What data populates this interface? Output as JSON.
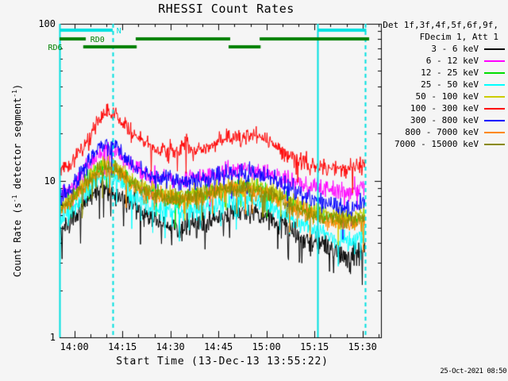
{
  "page": {
    "background": "#f5f5f5",
    "timestamp": "25-Oct-2021 08:50"
  },
  "chart_data": {
    "type": "line",
    "title": "RHESSI Count Rates",
    "xlabel": "Start Time (13-Dec-13 13:55:22)",
    "ylabel_parts": [
      {
        "t": "Count Rate (s"
      },
      {
        "t": "-1",
        "sup": true
      },
      {
        "t": " detector segment"
      },
      {
        "t": "-1",
        "sup": true
      },
      {
        "t": ")"
      }
    ],
    "x_axis": {
      "start_time": "13:55:22",
      "t_max_min": 100.4,
      "minor_step_min": 5,
      "first_tick_min": 4.633,
      "major_ticks": [
        {
          "t": 4.633,
          "label": "14:00"
        },
        {
          "t": 19.633,
          "label": "14:15"
        },
        {
          "t": 34.633,
          "label": "14:30"
        },
        {
          "t": 49.633,
          "label": "14:45"
        },
        {
          "t": 64.633,
          "label": "15:00"
        },
        {
          "t": 79.633,
          "label": "15:15"
        },
        {
          "t": 94.633,
          "label": "15:30"
        }
      ]
    },
    "y_axis": {
      "scale": "log",
      "min": 1,
      "max": 100,
      "major_ticks": [
        {
          "v": 100,
          "label": "100"
        },
        {
          "v": 10,
          "label": "10"
        },
        {
          "v": 1,
          "label": "1"
        }
      ]
    },
    "data_t_range": [
      0,
      95.5
    ],
    "vline_color": "#00E0E0",
    "vlines": [
      {
        "t": 0,
        "dash": false
      },
      {
        "t": 16.6,
        "dash": true
      },
      {
        "t": 80.6,
        "dash": false
      },
      {
        "t": 95.5,
        "dash": true
      }
    ],
    "flags": [
      {
        "label": "N",
        "color": "#00E0E0",
        "row": 0,
        "label_t": 17.8,
        "segments": [
          [
            0,
            16.6
          ],
          [
            80.6,
            95.8
          ]
        ]
      },
      {
        "label": "RD0",
        "color": "#008000",
        "row": 1,
        "label_t": 9.6,
        "segments": [
          [
            0,
            8.2
          ],
          [
            23.8,
            53.3
          ],
          [
            62.5,
            96.7
          ]
        ]
      },
      {
        "label": "RD6",
        "color": "#008000",
        "row": 2,
        "label_t": -3.6,
        "segments": [
          [
            7.4,
            24.1
          ],
          [
            52.8,
            62.8
          ]
        ]
      }
    ],
    "legend": {
      "header1": "Det 1f,3f,4f,5f,6f,9f,",
      "header2": "FDecim 1, Att 1"
    },
    "series": [
      {
        "label": "3 - 6 keV",
        "color": "#000000",
        "amp": 0.055,
        "spike_prob": 0.05,
        "points": [
          [
            0,
            4.6
          ],
          [
            4,
            5.6
          ],
          [
            8,
            7.1
          ],
          [
            12,
            8.5
          ],
          [
            15,
            8.9
          ],
          [
            18,
            8.5
          ],
          [
            22,
            7.1
          ],
          [
            26,
            6.1
          ],
          [
            30,
            5.5
          ],
          [
            34,
            5.2
          ],
          [
            38,
            5.0
          ],
          [
            42,
            5.2
          ],
          [
            46,
            5.6
          ],
          [
            50,
            6.0
          ],
          [
            54,
            6.3
          ],
          [
            58,
            6.4
          ],
          [
            62,
            6.2
          ],
          [
            66,
            5.8
          ],
          [
            70,
            5.2
          ],
          [
            74,
            4.6
          ],
          [
            78,
            4.1
          ],
          [
            82,
            3.8
          ],
          [
            86,
            3.5
          ],
          [
            90,
            3.3
          ],
          [
            93,
            3.4
          ],
          [
            95.5,
            3.8
          ]
        ]
      },
      {
        "label": "6 - 12 keV",
        "color": "#FF00FF",
        "amp": 0.045,
        "spike_prob": 0.02,
        "points": [
          [
            0,
            7.9
          ],
          [
            4,
            9.0
          ],
          [
            8,
            11.5
          ],
          [
            12,
            14.6
          ],
          [
            15,
            15.8
          ],
          [
            18,
            15.0
          ],
          [
            22,
            12.8
          ],
          [
            26,
            11.3
          ],
          [
            30,
            10.6
          ],
          [
            34,
            10.3
          ],
          [
            38,
            10.2
          ],
          [
            42,
            10.4
          ],
          [
            46,
            10.8
          ],
          [
            50,
            11.2
          ],
          [
            54,
            11.6
          ],
          [
            58,
            11.7
          ],
          [
            62,
            11.4
          ],
          [
            66,
            10.9
          ],
          [
            70,
            10.2
          ],
          [
            74,
            9.6
          ],
          [
            78,
            9.2
          ],
          [
            82,
            8.9
          ],
          [
            86,
            8.7
          ],
          [
            90,
            8.6
          ],
          [
            93,
            8.8
          ],
          [
            95.5,
            9.2
          ]
        ]
      },
      {
        "label": "12 - 25 keV",
        "color": "#00DD00",
        "amp": 0.045,
        "spike_prob": 0.02,
        "points": [
          [
            0,
            6.6
          ],
          [
            4,
            7.7
          ],
          [
            8,
            9.6
          ],
          [
            12,
            11.6
          ],
          [
            15,
            12.4
          ],
          [
            18,
            11.8
          ],
          [
            22,
            10.0
          ],
          [
            26,
            8.8
          ],
          [
            30,
            8.2
          ],
          [
            34,
            7.9
          ],
          [
            38,
            7.8
          ],
          [
            42,
            8.0
          ],
          [
            46,
            8.3
          ],
          [
            50,
            8.7
          ],
          [
            54,
            9.0
          ],
          [
            58,
            9.1
          ],
          [
            62,
            8.9
          ],
          [
            66,
            8.4
          ],
          [
            70,
            7.6
          ],
          [
            74,
            6.9
          ],
          [
            78,
            6.4
          ],
          [
            82,
            6.0
          ],
          [
            86,
            5.7
          ],
          [
            90,
            5.6
          ],
          [
            93,
            5.7
          ],
          [
            95.5,
            6.0
          ]
        ]
      },
      {
        "label": "25 - 50 keV",
        "color": "#00FFFF",
        "amp": 0.05,
        "spike_prob": 0.05,
        "points": [
          [
            0,
            5.6
          ],
          [
            4,
            6.5
          ],
          [
            8,
            8.2
          ],
          [
            12,
            10.0
          ],
          [
            15,
            10.6
          ],
          [
            18,
            10.1
          ],
          [
            22,
            8.5
          ],
          [
            26,
            7.4
          ],
          [
            30,
            6.8
          ],
          [
            34,
            6.5
          ],
          [
            38,
            6.4
          ],
          [
            42,
            6.5
          ],
          [
            46,
            6.8
          ],
          [
            50,
            7.2
          ],
          [
            54,
            7.5
          ],
          [
            58,
            7.6
          ],
          [
            62,
            7.4
          ],
          [
            66,
            6.9
          ],
          [
            70,
            6.2
          ],
          [
            74,
            5.5
          ],
          [
            78,
            5.0
          ],
          [
            82,
            4.6
          ],
          [
            86,
            4.3
          ],
          [
            90,
            4.1
          ],
          [
            93,
            4.2
          ],
          [
            95.5,
            4.5
          ]
        ]
      },
      {
        "label": "50 - 100 keV",
        "color": "#CCCC00",
        "amp": 0.042,
        "spike_prob": 0.02,
        "points": [
          [
            0,
            6.9
          ],
          [
            4,
            7.9
          ],
          [
            8,
            9.9
          ],
          [
            12,
            12.0
          ],
          [
            15,
            12.8
          ],
          [
            18,
            12.2
          ],
          [
            22,
            10.3
          ],
          [
            26,
            9.1
          ],
          [
            30,
            8.5
          ],
          [
            34,
            8.2
          ],
          [
            38,
            8.1
          ],
          [
            42,
            8.2
          ],
          [
            46,
            8.6
          ],
          [
            50,
            9.0
          ],
          [
            54,
            9.3
          ],
          [
            58,
            9.4
          ],
          [
            62,
            9.2
          ],
          [
            66,
            8.7
          ],
          [
            70,
            7.9
          ],
          [
            74,
            7.2
          ],
          [
            78,
            6.7
          ],
          [
            82,
            6.3
          ],
          [
            86,
            6.0
          ],
          [
            90,
            5.8
          ],
          [
            93,
            5.9
          ],
          [
            95.5,
            6.2
          ]
        ]
      },
      {
        "label": "100 - 300 keV",
        "color": "#FF0000",
        "amp": 0.04,
        "spike_prob": 0.015,
        "points": [
          [
            0,
            11.5
          ],
          [
            4,
            13.0
          ],
          [
            8,
            17.0
          ],
          [
            12,
            24.0
          ],
          [
            15,
            28.0
          ],
          [
            18,
            26.0
          ],
          [
            22,
            20.5
          ],
          [
            26,
            17.5
          ],
          [
            30,
            16.0
          ],
          [
            34,
            15.5
          ],
          [
            37.5,
            15.2
          ],
          [
            39.5,
            18.3
          ],
          [
            41,
            15.4
          ],
          [
            45,
            16.0
          ],
          [
            49,
            17.5
          ],
          [
            53,
            19.0
          ],
          [
            57,
            18.6
          ],
          [
            61,
            19.4
          ],
          [
            64,
            18.5
          ],
          [
            68,
            16.0
          ],
          [
            72,
            14.2
          ],
          [
            76,
            13.0
          ],
          [
            80,
            12.4
          ],
          [
            84,
            12.1
          ],
          [
            88,
            11.9
          ],
          [
            92,
            12.1
          ],
          [
            95.5,
            12.8
          ]
        ]
      },
      {
        "label": "300 - 800 keV",
        "color": "#0000FF",
        "amp": 0.045,
        "spike_prob": 0.02,
        "points": [
          [
            0,
            7.7
          ],
          [
            4,
            9.2
          ],
          [
            8,
            12.0
          ],
          [
            12,
            15.6
          ],
          [
            15,
            17.0
          ],
          [
            18,
            16.0
          ],
          [
            22,
            13.0
          ],
          [
            26,
            11.2
          ],
          [
            30,
            10.3
          ],
          [
            34,
            9.9
          ],
          [
            38,
            9.7
          ],
          [
            42,
            9.9
          ],
          [
            46,
            10.3
          ],
          [
            50,
            10.7
          ],
          [
            54,
            11.0
          ],
          [
            58,
            11.1
          ],
          [
            62,
            10.8
          ],
          [
            66,
            10.2
          ],
          [
            70,
            9.2
          ],
          [
            74,
            8.4
          ],
          [
            78,
            7.7
          ],
          [
            82,
            7.2
          ],
          [
            86,
            6.9
          ],
          [
            90,
            6.7
          ],
          [
            93,
            6.9
          ],
          [
            95.5,
            7.3
          ]
        ]
      },
      {
        "label": "800 - 7000 keV",
        "color": "#FF8800",
        "amp": 0.045,
        "spike_prob": 0.02,
        "points": [
          [
            0,
            6.3
          ],
          [
            4,
            7.4
          ],
          [
            8,
            9.3
          ],
          [
            12,
            11.3
          ],
          [
            15,
            12.0
          ],
          [
            18,
            11.4
          ],
          [
            22,
            9.7
          ],
          [
            26,
            8.5
          ],
          [
            30,
            7.9
          ],
          [
            34,
            7.6
          ],
          [
            38,
            7.5
          ],
          [
            42,
            7.6
          ],
          [
            46,
            8.0
          ],
          [
            50,
            8.4
          ],
          [
            54,
            8.7
          ],
          [
            58,
            8.8
          ],
          [
            62,
            8.6
          ],
          [
            66,
            8.1
          ],
          [
            70,
            7.3
          ],
          [
            74,
            6.6
          ],
          [
            78,
            6.1
          ],
          [
            82,
            5.7
          ],
          [
            86,
            5.4
          ],
          [
            90,
            5.2
          ],
          [
            93,
            5.3
          ],
          [
            95.5,
            5.6
          ]
        ]
      },
      {
        "label": "7000 - 15000 keV",
        "color": "#8A8A00",
        "amp": 0.042,
        "spike_prob": 0.02,
        "points": [
          [
            0,
            6.5
          ],
          [
            4,
            7.6
          ],
          [
            8,
            9.5
          ],
          [
            12,
            11.5
          ],
          [
            15,
            12.3
          ],
          [
            18,
            11.7
          ],
          [
            22,
            9.9
          ],
          [
            26,
            8.7
          ],
          [
            30,
            8.1
          ],
          [
            34,
            7.8
          ],
          [
            38,
            7.7
          ],
          [
            42,
            7.9
          ],
          [
            46,
            8.2
          ],
          [
            50,
            8.6
          ],
          [
            54,
            8.9
          ],
          [
            58,
            9.0
          ],
          [
            62,
            8.8
          ],
          [
            66,
            8.3
          ],
          [
            70,
            7.5
          ],
          [
            74,
            6.8
          ],
          [
            78,
            6.3
          ],
          [
            82,
            5.9
          ],
          [
            86,
            5.6
          ],
          [
            90,
            5.5
          ],
          [
            93,
            5.6
          ],
          [
            95.5,
            5.9
          ]
        ]
      }
    ]
  }
}
